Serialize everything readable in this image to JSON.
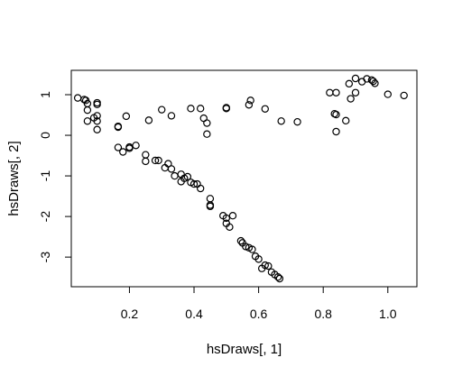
{
  "chart_data": {
    "type": "scatter",
    "title": "",
    "xlabel": "hsDraws[, 1]",
    "ylabel": "hsDraws[, 2]",
    "xlim": [
      0.02,
      1.09
    ],
    "ylim": [
      -3.73,
      1.6
    ],
    "xticks": [
      0.2,
      0.4,
      0.6,
      0.8,
      1.0
    ],
    "xtick_labels": [
      "0.2",
      "0.4",
      "0.6",
      "0.8",
      "1.0"
    ],
    "yticks": [
      -3,
      -2,
      -1,
      0,
      1
    ],
    "ytick_labels": [
      "-3",
      "-2",
      "-1",
      "0",
      "1"
    ],
    "grid": false,
    "marker": "open-circle",
    "points": [
      [
        0.04,
        0.92
      ],
      [
        0.06,
        0.88
      ],
      [
        0.07,
        0.78
      ],
      [
        0.065,
        0.86
      ],
      [
        0.07,
        0.62
      ],
      [
        0.07,
        0.35
      ],
      [
        0.09,
        0.43
      ],
      [
        0.1,
        0.8
      ],
      [
        0.1,
        0.76
      ],
      [
        0.1,
        0.48
      ],
      [
        0.1,
        0.35
      ],
      [
        0.1,
        0.14
      ],
      [
        0.165,
        0.22
      ],
      [
        0.165,
        0.2
      ],
      [
        0.19,
        0.47
      ],
      [
        0.26,
        0.37
      ],
      [
        0.3,
        0.63
      ],
      [
        0.33,
        0.48
      ],
      [
        0.39,
        0.66
      ],
      [
        0.42,
        0.66
      ],
      [
        0.43,
        0.42
      ],
      [
        0.44,
        0.3
      ],
      [
        0.44,
        0.03
      ],
      [
        0.5,
        0.68
      ],
      [
        0.5,
        0.66
      ],
      [
        0.57,
        0.75
      ],
      [
        0.575,
        0.86
      ],
      [
        0.62,
        0.65
      ],
      [
        0.67,
        0.35
      ],
      [
        0.72,
        0.33
      ],
      [
        0.82,
        1.05
      ],
      [
        0.84,
        1.05
      ],
      [
        0.835,
        0.53
      ],
      [
        0.84,
        0.51
      ],
      [
        0.84,
        0.09
      ],
      [
        0.87,
        0.36
      ],
      [
        0.88,
        1.27
      ],
      [
        0.885,
        0.9
      ],
      [
        0.9,
        1.4
      ],
      [
        0.9,
        1.05
      ],
      [
        0.92,
        1.32
      ],
      [
        0.935,
        1.39
      ],
      [
        0.95,
        1.36
      ],
      [
        0.96,
        1.28
      ],
      [
        0.955,
        1.33
      ],
      [
        1.0,
        1.01
      ],
      [
        1.05,
        0.98
      ],
      [
        0.165,
        -0.3
      ],
      [
        0.18,
        -0.41
      ],
      [
        0.2,
        -0.29
      ],
      [
        0.2,
        -0.32
      ],
      [
        0.22,
        -0.25
      ],
      [
        0.25,
        -0.48
      ],
      [
        0.25,
        -0.64
      ],
      [
        0.28,
        -0.62
      ],
      [
        0.29,
        -0.62
      ],
      [
        0.31,
        -0.8
      ],
      [
        0.32,
        -0.7
      ],
      [
        0.33,
        -0.83
      ],
      [
        0.34,
        -1.0
      ],
      [
        0.36,
        -0.96
      ],
      [
        0.36,
        -1.14
      ],
      [
        0.37,
        -1.06
      ],
      [
        0.38,
        -1.02
      ],
      [
        0.39,
        -1.16
      ],
      [
        0.4,
        -1.2
      ],
      [
        0.41,
        -1.2
      ],
      [
        0.42,
        -1.31
      ],
      [
        0.45,
        -1.56
      ],
      [
        0.45,
        -1.72
      ],
      [
        0.45,
        -1.75
      ],
      [
        0.49,
        -1.98
      ],
      [
        0.5,
        -2.04
      ],
      [
        0.5,
        -2.17
      ],
      [
        0.51,
        -2.26
      ],
      [
        0.52,
        -1.98
      ],
      [
        0.545,
        -2.6
      ],
      [
        0.55,
        -2.65
      ],
      [
        0.56,
        -2.74
      ],
      [
        0.57,
        -2.77
      ],
      [
        0.58,
        -2.81
      ],
      [
        0.59,
        -2.98
      ],
      [
        0.6,
        -3.05
      ],
      [
        0.61,
        -3.28
      ],
      [
        0.62,
        -3.2
      ],
      [
        0.63,
        -3.22
      ],
      [
        0.64,
        -3.37
      ],
      [
        0.65,
        -3.43
      ],
      [
        0.66,
        -3.49
      ],
      [
        0.665,
        -3.53
      ]
    ]
  }
}
